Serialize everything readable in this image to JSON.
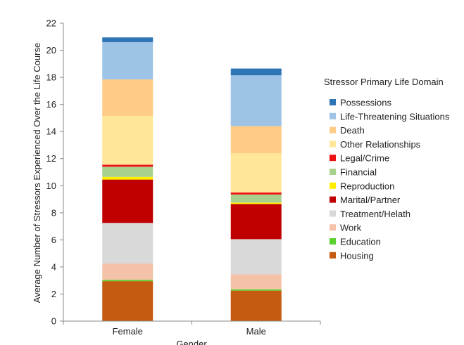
{
  "chart_data": {
    "type": "bar",
    "stacked": true,
    "title": "",
    "xlabel": "Gender",
    "ylabel": "Average Number of Stressors Experienced Over the Life Course",
    "categories": [
      "Female",
      "Male"
    ],
    "ylim": [
      0,
      22
    ],
    "yticks": [
      0,
      2,
      4,
      6,
      8,
      10,
      12,
      14,
      16,
      18,
      20,
      22
    ],
    "grid": false,
    "legend_title": "Stressor Primary Life Domain",
    "legend_position": "right",
    "series": [
      {
        "name": "Housing",
        "color": "#c55a11",
        "values": [
          2.95,
          2.25
        ]
      },
      {
        "name": "Education",
        "color": "#5bd12f",
        "values": [
          0.1,
          0.1
        ]
      },
      {
        "name": "Work",
        "color": "#f4c2a8",
        "values": [
          1.2,
          1.1
        ]
      },
      {
        "name": "Treatment/Helath",
        "color": "#d9d9d9",
        "values": [
          3.0,
          2.6
        ]
      },
      {
        "name": "Marital/Partner",
        "color": "#c00000",
        "values": [
          3.2,
          2.6
        ]
      },
      {
        "name": "Reproduction",
        "color": "#ffee00",
        "values": [
          0.2,
          0.1
        ]
      },
      {
        "name": "Financial",
        "color": "#a9d18e",
        "values": [
          0.75,
          0.6
        ]
      },
      {
        "name": "Legal/Crime",
        "color": "#ee1111",
        "values": [
          0.15,
          0.15
        ]
      },
      {
        "name": "Other Relationships",
        "color": "#ffe699",
        "values": [
          3.6,
          2.9
        ]
      },
      {
        "name": "Death",
        "color": "#ffcc88",
        "values": [
          2.7,
          2.0
        ]
      },
      {
        "name": "Life-Threatening Situations",
        "color": "#9dc3e6",
        "values": [
          2.75,
          3.75
        ]
      },
      {
        "name": "Possessions",
        "color": "#2e75b6",
        "values": [
          0.35,
          0.5
        ]
      }
    ]
  }
}
